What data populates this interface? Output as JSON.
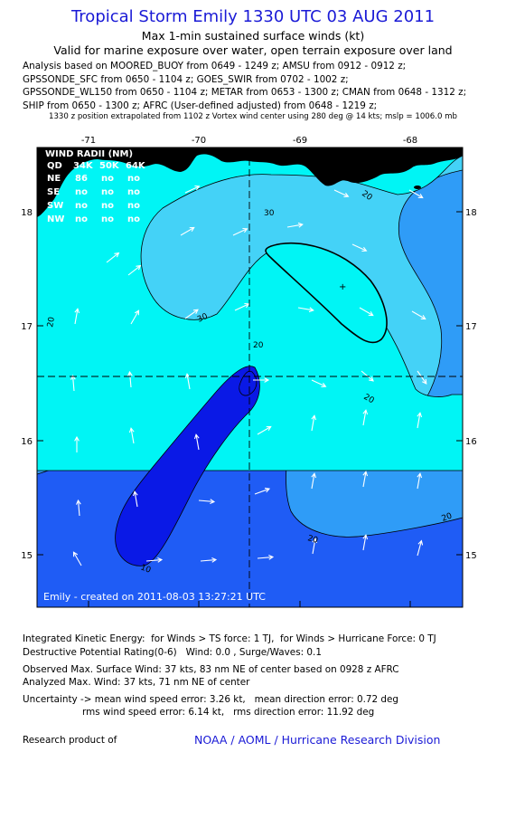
{
  "title": "Tropical Storm Emily 1330 UTC 03 AUG 2011",
  "subtitle1": "Max 1-min sustained surface winds (kt)",
  "subtitle2": "Valid for marine exposure over water, open terrain exposure over land",
  "analysis_lines": [
    "Analysis based on MOORED_BUOY from 0649 - 1249 z; AMSU from 0912 - 0912 z;",
    "GPSSONDE_SFC from 0650 - 1104 z; GOES_SWIR from 0702 - 1002 z;",
    "GPSSONDE_WL150 from 0650 - 1104 z; METAR from 0653 - 1300 z; CMAN from 0648 - 1312 z;",
    "SHIP from 0650 - 1300 z; AFRC (User-defined adjusted) from 0648 - 1219 z;"
  ],
  "position_note": "1330 z position extrapolated from 1102 z Vortex wind center using 280 deg @ 14 kts; mslp = 1006.0 mb",
  "map": {
    "lon_ticks": [
      "-71",
      "-70",
      "-69",
      "-68"
    ],
    "lat_ticks": [
      "18",
      "17",
      "16",
      "15"
    ],
    "contour_labels": [
      "20",
      "30",
      "20",
      "20",
      "30",
      "20",
      "20",
      "20",
      "10"
    ],
    "wind_radii": {
      "header": "WIND RADII (NM)",
      "columns": [
        "QD",
        "34K",
        "50K",
        "64K"
      ],
      "rows": [
        {
          "q": "NE",
          "v": [
            "86",
            "no",
            "no"
          ]
        },
        {
          "q": "SE",
          "v": [
            "no",
            "no",
            "no"
          ]
        },
        {
          "q": "SW",
          "v": [
            "no",
            "no",
            "no"
          ]
        },
        {
          "q": "NW",
          "v": [
            "no",
            "no",
            "no"
          ]
        }
      ]
    },
    "credit": "Emily - created on 2011-08-03 13:27:21 UTC",
    "colors": {
      "band_lt10": "#0a19e6",
      "band_10_20": "#1f5cf5",
      "band_20_30": "#2f9cf7",
      "band_30_34": "#44d2f7",
      "band_ge34": "#00f5f5",
      "land": "#000000"
    }
  },
  "ike_line": "Integrated Kinetic Energy:  for Winds > TS force: 1 TJ,  for Winds > Hurricane Force: 0 TJ",
  "dpr_line": "Destructive Potential Rating(0-6)   Wind: 0.0 , Surge/Waves: 0.1",
  "obs_max": "Observed Max. Surface Wind: 37 kts, 83 nm NE of center based on 0928 z AFRC",
  "ana_max": "Analyzed Max. Wind: 37 kts, 71 nm NE of center",
  "unc1": "Uncertainty -> mean wind speed error: 3.26 kt,   mean direction error: 0.72 deg",
  "unc2": "                    rms wind speed error: 6.14 kt,   rms direction error: 11.92 deg",
  "footer_left": "Research product of",
  "footer_right": "NOAA / AOML / Hurricane Research Division"
}
